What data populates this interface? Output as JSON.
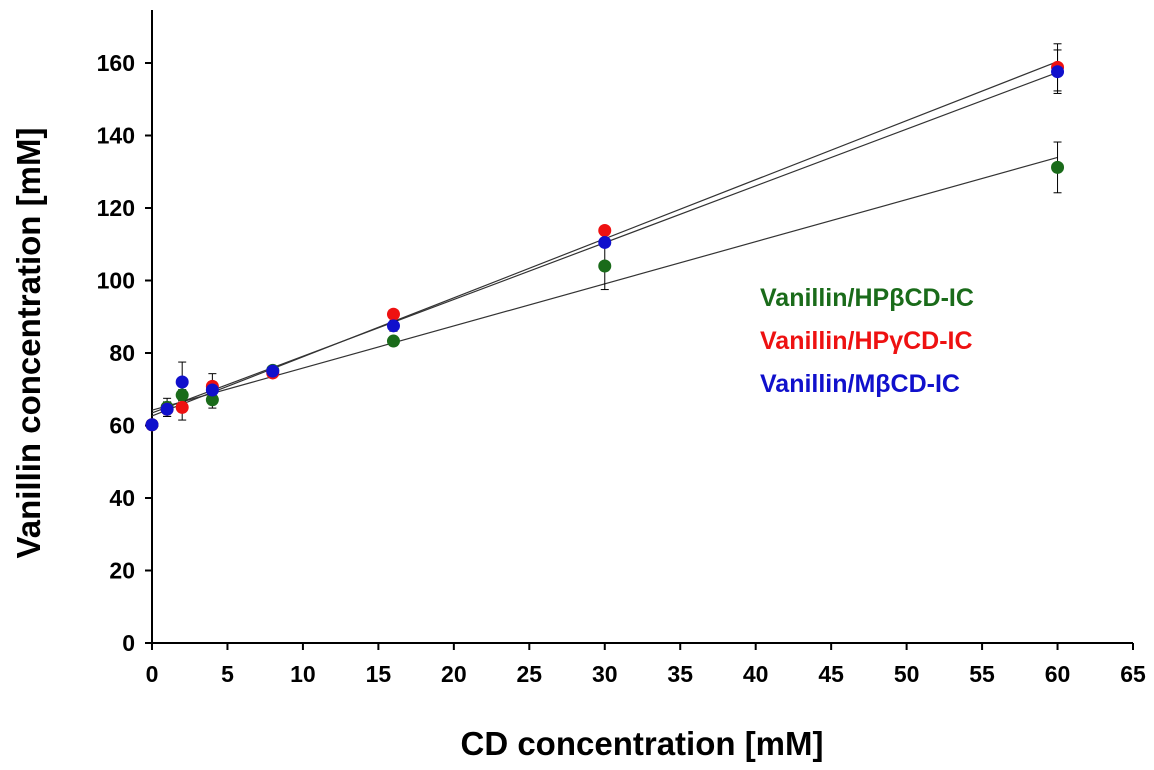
{
  "chart_data": {
    "type": "scatter",
    "title": "",
    "xlabel": "CD concentration [mM]",
    "ylabel": "Vanillin concentration [mM]",
    "xlim": [
      0,
      65
    ],
    "ylim": [
      0,
      175
    ],
    "x_ticks": [
      0,
      5,
      10,
      15,
      20,
      25,
      30,
      35,
      40,
      45,
      50,
      55,
      60,
      65
    ],
    "y_ticks": [
      0,
      20,
      40,
      60,
      80,
      100,
      120,
      140,
      160
    ],
    "grid": false,
    "legend_position": "right",
    "trendlines": "linear",
    "series": [
      {
        "name": "Vanillin/HPβCD-IC",
        "color": "#1a6b1a",
        "points": [
          {
            "x": 0,
            "y": 60.2,
            "err": 0
          },
          {
            "x": 1,
            "y": 65.0,
            "err": 2.5
          },
          {
            "x": 2,
            "y": 68.4,
            "err": 1.5
          },
          {
            "x": 4,
            "y": 67.1,
            "err": 2.3
          },
          {
            "x": 8,
            "y": 75.2,
            "err": 0.8
          },
          {
            "x": 16,
            "y": 83.3,
            "err": 0.8
          },
          {
            "x": 30,
            "y": 104.0,
            "err": 6.5
          },
          {
            "x": 60,
            "y": 131.2,
            "err": 7.0
          }
        ]
      },
      {
        "name": "Vanillin/HPγCD-IC",
        "color": "#ee1111",
        "points": [
          {
            "x": 0,
            "y": 60.2,
            "err": 0
          },
          {
            "x": 1,
            "y": 64.5,
            "err": 2.0
          },
          {
            "x": 2,
            "y": 65.0,
            "err": 3.5
          },
          {
            "x": 4,
            "y": 70.8,
            "err": 3.5
          },
          {
            "x": 8,
            "y": 74.5,
            "err": 1.0
          },
          {
            "x": 16,
            "y": 90.7,
            "err": 1.0
          },
          {
            "x": 30,
            "y": 113.8,
            "err": 1.0
          },
          {
            "x": 60,
            "y": 158.8,
            "err": 6.5
          }
        ]
      },
      {
        "name": "Vanillin/MβCD-IC",
        "color": "#1010cc",
        "points": [
          {
            "x": 0,
            "y": 60.2,
            "err": 0
          },
          {
            "x": 1,
            "y": 64.5,
            "err": 2.0
          },
          {
            "x": 2,
            "y": 72.0,
            "err": 5.5
          },
          {
            "x": 4,
            "y": 69.8,
            "err": 2.3
          },
          {
            "x": 8,
            "y": 75.0,
            "err": 0.8
          },
          {
            "x": 16,
            "y": 87.5,
            "err": 1.5
          },
          {
            "x": 30,
            "y": 110.5,
            "err": 1.0
          },
          {
            "x": 60,
            "y": 157.6,
            "err": 6.0
          }
        ]
      }
    ]
  }
}
